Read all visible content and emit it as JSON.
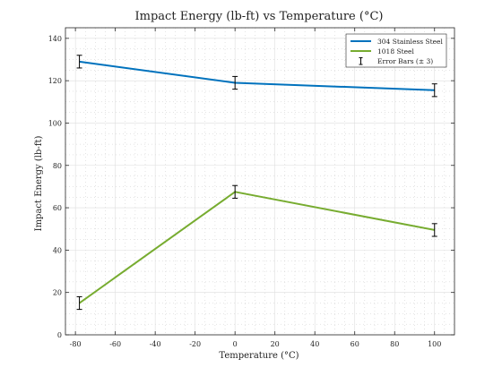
{
  "chart_data": {
    "type": "line",
    "title": "Impact Energy (lb-ft) vs Temperature (°C)",
    "xlabel": "Temperature (°C)",
    "ylabel": "Impact Energy (lb-ft)",
    "xlim": [
      -85,
      110
    ],
    "ylim": [
      0,
      145
    ],
    "x_ticks": [
      -80,
      -60,
      -40,
      -20,
      0,
      20,
      40,
      60,
      80,
      100
    ],
    "y_ticks": [
      0,
      20,
      40,
      60,
      80,
      100,
      120,
      140
    ],
    "x_tick_labels": [
      "-80",
      "-60",
      "-40",
      "-20",
      "0",
      "20",
      "40",
      "60",
      "80",
      "100"
    ],
    "y_tick_labels": [
      "0",
      "20",
      "40",
      "60",
      "80",
      "100",
      "120",
      "140"
    ],
    "grid": true,
    "minor_grid": true,
    "legend_position": "top-right",
    "error_bar": 3,
    "x": [
      -78,
      0,
      100
    ],
    "series": [
      {
        "name": "304 Stainless Steel",
        "values": [
          129,
          119,
          115.5
        ],
        "color": "#0072BD"
      },
      {
        "name": "1018 Steel",
        "values": [
          15,
          67.5,
          49.5
        ],
        "color": "#77AC30"
      }
    ],
    "error_legend_label": "Error Bars (± 3)"
  }
}
